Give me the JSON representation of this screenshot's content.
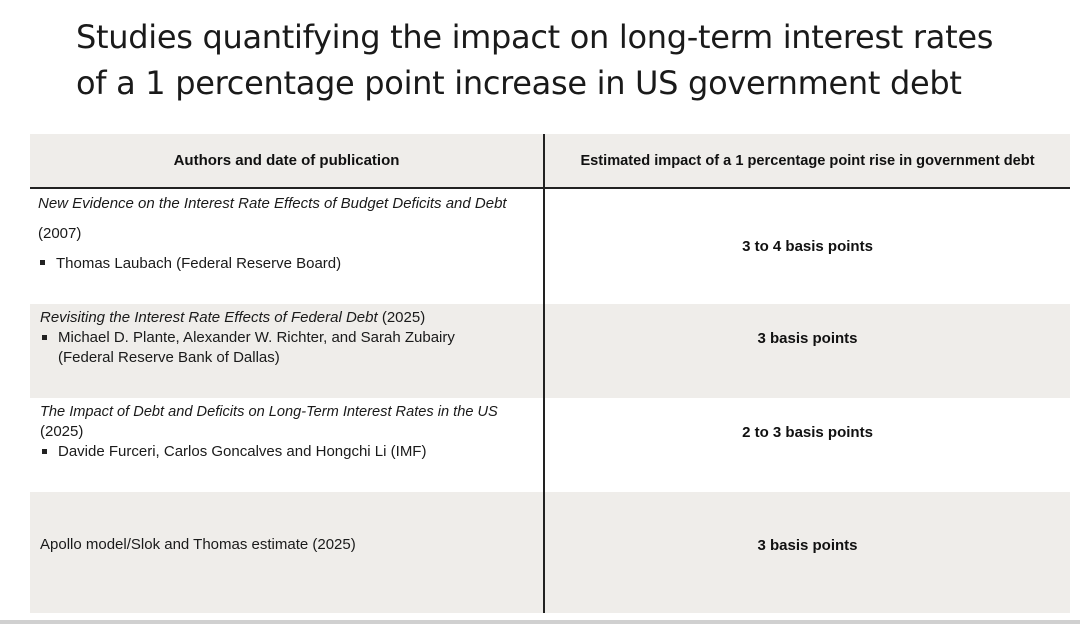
{
  "title": {
    "line1": "Studies quantifying the impact on long-term interest rates",
    "line2": "of a 1 percentage point increase in US government debt"
  },
  "table": {
    "headers": {
      "left": "Authors and date of publication",
      "right": "Estimated impact of a 1 percentage point rise in government debt"
    },
    "rows": [
      {
        "study_title": "New Evidence on the Interest Rate Effects of Budget Deficits and Debt",
        "year": "(2007)",
        "authors": "Thomas Laubach (Federal Reserve Board)",
        "impact": "3 to 4 basis points"
      },
      {
        "study_title": "Revisiting the Interest Rate Effects of Federal Debt",
        "year": " (2025)",
        "authors_line1": "Michael D. Plante, Alexander W. Richter, and Sarah Zubairy",
        "authors_line2": "(Federal Reserve Bank of Dallas)",
        "impact": "3 basis points"
      },
      {
        "study_title": "The Impact of Debt and Deficits on Long-Term Interest Rates in the US",
        "year": "(2025)",
        "authors": "Davide Furceri, Carlos Goncalves and Hongchi Li (IMF)",
        "impact": "2 to 3 basis points"
      },
      {
        "study_title": "Apollo model/Slok and Thomas estimate (2025)",
        "impact": "3 basis points"
      }
    ]
  }
}
